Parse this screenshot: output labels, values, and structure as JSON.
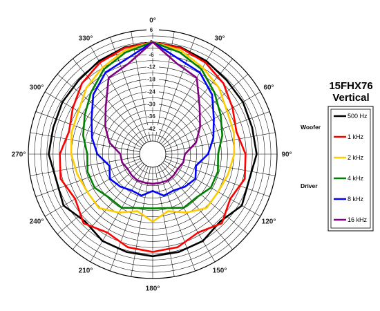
{
  "chart_data": {
    "type": "polar",
    "title": "15FHX76",
    "subtitle": "Vertical",
    "angle_labels": [
      "0°",
      "30°",
      "60°",
      "90°",
      "120°",
      "150°",
      "180°",
      "210°",
      "240°",
      "270°",
      "300°",
      "330°"
    ],
    "radial_ticks": [
      "6",
      "0",
      "-6",
      "-12",
      "-18",
      "-24",
      "-30",
      "-36",
      "-42"
    ],
    "rlim": [
      -48,
      6
    ],
    "legend_groups": [
      {
        "label": "Woofer",
        "series": [
          "500 Hz",
          "1 kHz"
        ]
      },
      {
        "label": "Driver",
        "series": [
          "2 kHz",
          "4 kHz",
          "8 kHz",
          "16 kHz"
        ]
      }
    ],
    "series": [
      {
        "name": "500 Hz",
        "color": "#000000",
        "angles": [
          0,
          15,
          30,
          45,
          60,
          75,
          90,
          105,
          120,
          135,
          150,
          165,
          180,
          195,
          210,
          225,
          240,
          255,
          270,
          285,
          300,
          315,
          330,
          345
        ],
        "values": [
          0,
          -0.8,
          -2.2,
          -3.6,
          -3.8,
          -4.4,
          -3.9,
          -5.9,
          -4.4,
          -8.1,
          -5.7,
          -5.2,
          -4.8,
          -5.2,
          -5.7,
          -8.1,
          -4.4,
          -5.9,
          -3.9,
          -4.4,
          -3.8,
          -3.6,
          -2.2,
          -0.8
        ]
      },
      {
        "name": "1 kHz",
        "color": "#ff0000",
        "angles": [
          0,
          15,
          30,
          45,
          60,
          75,
          90,
          105,
          120,
          135,
          150,
          165,
          180,
          195,
          210,
          225,
          240,
          255,
          270,
          285,
          300,
          315,
          330,
          345
        ],
        "values": [
          0,
          -1.1,
          -3.1,
          -5.8,
          -9.6,
          -12.3,
          -9.3,
          -8.1,
          -10.9,
          -6.9,
          -10.4,
          -7.6,
          -6.9,
          -7.6,
          -10.4,
          -6.9,
          -10.9,
          -8.1,
          -9.3,
          -12.3,
          -9.6,
          -5.8,
          -3.1,
          -1.1
        ]
      },
      {
        "name": "2 kHz",
        "color": "#ffcc00",
        "angles": [
          0,
          15,
          30,
          45,
          60,
          75,
          90,
          105,
          120,
          135,
          150,
          165,
          180,
          195,
          210,
          225,
          240,
          255,
          270,
          285,
          300,
          315,
          330,
          345
        ],
        "values": [
          0,
          -2.2,
          -5.8,
          -8.9,
          -12.7,
          -13.6,
          -14.8,
          -16.5,
          -17.7,
          -17.4,
          -21.6,
          -25.7,
          -21.6,
          -25.7,
          -21.6,
          -17.4,
          -17.7,
          -16.5,
          -14.8,
          -13.6,
          -12.7,
          -8.9,
          -5.8,
          -2.2
        ]
      },
      {
        "name": "4 kHz",
        "color": "#008000",
        "angles": [
          0,
          15,
          30,
          45,
          60,
          75,
          90,
          105,
          120,
          135,
          150,
          165,
          180,
          195,
          210,
          225,
          240,
          255,
          270,
          285,
          300,
          315,
          330,
          345
        ],
        "values": [
          0,
          -3.3,
          -6.9,
          -12.0,
          -16.3,
          -19.4,
          -22.6,
          -21.6,
          -21.8,
          -24.5,
          -24.3,
          -27.3,
          -28.0,
          -27.3,
          -24.3,
          -24.5,
          -21.8,
          -21.6,
          -22.6,
          -19.4,
          -16.3,
          -12.0,
          -6.9,
          -3.3
        ]
      },
      {
        "name": "8 kHz",
        "color": "#0000ff",
        "angles": [
          0,
          15,
          30,
          45,
          60,
          75,
          90,
          105,
          120,
          135,
          150,
          165,
          180,
          195,
          210,
          225,
          240,
          255,
          270,
          285,
          300,
          315,
          330,
          345
        ],
        "values": [
          0,
          -6.4,
          -8.6,
          -13.6,
          -20.1,
          -23.9,
          -27.5,
          -32.6,
          -30.4,
          -32.1,
          -34.0,
          -33.5,
          -36.5,
          -33.5,
          -34.0,
          -32.1,
          -30.4,
          -32.6,
          -27.5,
          -23.9,
          -20.1,
          -13.6,
          -8.6,
          -6.4
        ]
      },
      {
        "name": "16 kHz",
        "color": "#800080",
        "angles": [
          0,
          15,
          30,
          45,
          60,
          75,
          90,
          105,
          120,
          135,
          150,
          165,
          180,
          195,
          210,
          225,
          240,
          255,
          270,
          285,
          300,
          315,
          330,
          345
        ],
        "values": [
          0,
          -8.9,
          -11.6,
          -22.1,
          -27.8,
          -32.6,
          -38.7,
          -39.0,
          -40.2,
          -39.9,
          -39.6,
          -40.0,
          -40.0,
          -40.0,
          -39.6,
          -39.9,
          -40.2,
          -39.0,
          -38.7,
          -32.6,
          -27.8,
          -22.1,
          -11.6,
          -8.9
        ]
      }
    ]
  }
}
